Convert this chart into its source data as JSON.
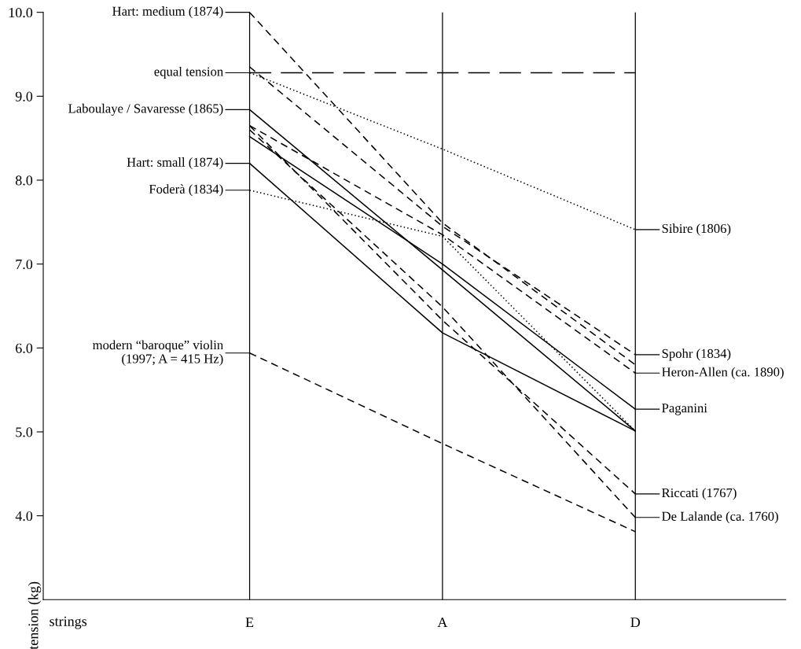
{
  "chart_data": {
    "type": "line",
    "xlabel": "strings",
    "ylabel": "tension (kg)",
    "categories": [
      "E",
      "A",
      "D"
    ],
    "ylim": [
      3.0,
      10.0
    ],
    "yticks": [
      {
        "value": 4,
        "label": "4.0"
      },
      {
        "value": 5,
        "label": "5.0"
      },
      {
        "value": 6,
        "label": "6.0"
      },
      {
        "value": 7,
        "label": "7.0"
      },
      {
        "value": 8,
        "label": "8.0"
      },
      {
        "value": 9,
        "label": "9.0"
      },
      {
        "value": 10,
        "label": "10.0"
      }
    ],
    "grid": "x",
    "marker": "none",
    "series": [
      {
        "color": "#000000",
        "line_style": "dashed",
        "values": [
          10.0,
          7.49,
          5.8
        ]
      },
      {
        "color": "#000000",
        "line_style": "solid",
        "values": [
          8.84,
          6.93,
          5.01
        ]
      },
      {
        "color": "#000000",
        "line_style": "solid",
        "values": [
          8.2,
          6.18,
          5.01
        ]
      },
      {
        "color": "#000000",
        "line_style": "dotted",
        "values": [
          7.88,
          7.33,
          5.01
        ]
      },
      {
        "color": "#000000",
        "line_style": "dashed",
        "values": [
          5.94,
          4.86,
          3.81
        ]
      },
      {
        "color": "#000000",
        "line_style": "dotted",
        "values": [
          9.28,
          8.37,
          7.41
        ]
      },
      {
        "color": "#000000",
        "line_style": "dashed",
        "values": [
          9.35,
          7.45,
          5.92
        ]
      },
      {
        "color": "#000000",
        "line_style": "dashed",
        "values": [
          8.65,
          7.35,
          5.7
        ]
      },
      {
        "color": "#000000",
        "line_style": "solid",
        "values": [
          8.52,
          7.0,
          5.27
        ]
      },
      {
        "color": "#000000",
        "line_style": "dashed",
        "values": [
          8.65,
          6.33,
          4.26
        ]
      },
      {
        "color": "#000000",
        "line_style": "dashed",
        "values": [
          8.6,
          6.49,
          3.98
        ]
      }
    ],
    "ref_lines": [
      {
        "axis": "y",
        "value": 9.28,
        "label": "equal tension",
        "color": "#000000",
        "line_style": "dashed"
      }
    ],
    "annotations": [
      {
        "text": "Hart: medium (1874)",
        "x": "E",
        "y": 10.0
      },
      {
        "text": "Laboulaye / Savaresse (1865)",
        "x": "E",
        "y": 8.84
      },
      {
        "text": "Hart: small (1874)",
        "x": "E",
        "y": 8.2
      },
      {
        "text": "Foderà (1834)",
        "x": "E",
        "y": 7.88
      },
      {
        "text": "modern “baroque” violin\n(1997; A = 415 Hz)",
        "x": "E",
        "y": 5.94
      },
      {
        "text": "Sibire (1806)",
        "x": "D",
        "y": 7.41
      },
      {
        "text": "Spohr (1834)",
        "x": "D",
        "y": 5.92
      },
      {
        "text": "Heron-Allen (ca. 1890)",
        "x": "D",
        "y": 5.7
      },
      {
        "text": "Paganini",
        "x": "D",
        "y": 5.27
      },
      {
        "text": "Riccati (1767)",
        "x": "D",
        "y": 4.26
      },
      {
        "text": "De Lalande (ca. 1760)",
        "x": "D",
        "y": 3.98
      }
    ]
  }
}
